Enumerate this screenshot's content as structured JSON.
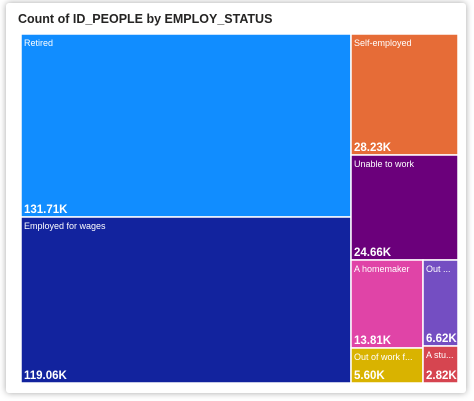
{
  "chart_data": {
    "type": "treemap",
    "title": "Count of ID_PEOPLE by EMPLOY_STATUS",
    "items": [
      {
        "label": "Retired",
        "value_label": "131.71K",
        "value": 131710,
        "color": "#118DFF"
      },
      {
        "label": "Employed for wages",
        "value_label": "119.06K",
        "value": 119060,
        "color": "#12239E"
      },
      {
        "label": "Self-employed",
        "value_label": "28.23K",
        "value": 28230,
        "color": "#E66C37"
      },
      {
        "label": "Unable to work",
        "value_label": "24.66K",
        "value": 24660,
        "color": "#6B007B"
      },
      {
        "label": "A homemaker",
        "value_label": "13.81K",
        "value": 13810,
        "color": "#E044A7"
      },
      {
        "label": "Out ...",
        "value_label": "6.62K",
        "value": 6620,
        "color": "#744EC2"
      },
      {
        "label": "Out of work f...",
        "value_label": "5.60K",
        "value": 5600,
        "color": "#D9B300"
      },
      {
        "label": "A stu...",
        "value_label": "2.82K",
        "value": 2820,
        "color": "#D64550"
      }
    ]
  }
}
